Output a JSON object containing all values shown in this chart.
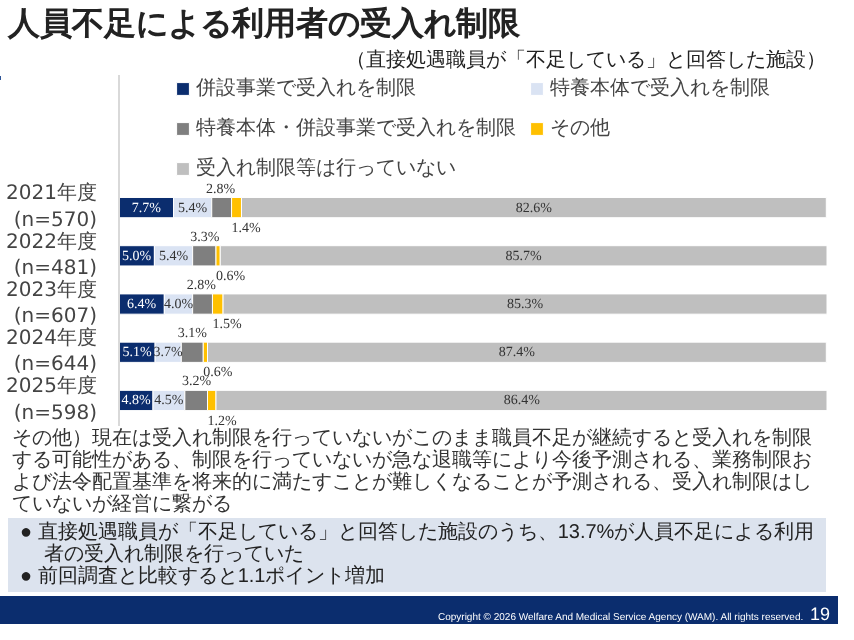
{
  "chart_data": {
    "type": "bar",
    "orientation": "horizontal",
    "stacked": true,
    "title": "人員不足による利用者の受入れ制限",
    "subtitle": "（直接処遇職員が「不足している」と回答した施設）",
    "categories": [
      "2021年度\n(n=570)",
      "2022年度\n(n=481)",
      "2023年度\n(n=607)",
      "2024年度\n(n=644)",
      "2025年度\n(n=598)"
    ],
    "xlim": [
      0,
      100
    ],
    "tick_labels": "y",
    "grid": false,
    "legend": "top",
    "data_labels": true,
    "series": [
      {
        "name": "併設事業で受入れを制限",
        "color": "#0b2d6e",
        "values": [
          7.7,
          5.0,
          6.4,
          5.1,
          4.8
        ],
        "value_labels": [
          "7.7%",
          "5.0%",
          "6.4%",
          "5.1%",
          "4.8%"
        ]
      },
      {
        "name": "特養本体で受入れを制限",
        "color": "#dae3f3",
        "values": [
          5.4,
          5.4,
          4.0,
          3.7,
          4.5
        ],
        "value_labels": [
          "5.4%",
          "5.4%",
          "4.0%",
          "3.7%",
          "4.5%"
        ]
      },
      {
        "name": "特養本体・併設事業で受入れを制限",
        "color": "#7f7f7f",
        "values": [
          2.8,
          3.3,
          2.8,
          3.1,
          3.2
        ],
        "value_labels": [
          "2.8%",
          "3.3%",
          "2.8%",
          "3.1%",
          "3.2%"
        ]
      },
      {
        "name": "その他",
        "color": "#ffc000",
        "values": [
          1.4,
          0.6,
          1.5,
          0.6,
          1.2
        ],
        "value_labels": [
          "1.4%",
          "0.6%",
          "1.5%",
          "0.6%",
          "1.2%"
        ]
      },
      {
        "name": "受入れ制限等は行っていない",
        "color": "#bfbfbf",
        "values": [
          82.6,
          85.7,
          85.3,
          87.4,
          86.4
        ],
        "value_labels": [
          "82.6%",
          "85.7%",
          "85.3%",
          "87.4%",
          "86.4%"
        ]
      }
    ],
    "annotations": [
      "その他）現在は受入れ制限を行っていないがこのまま職員不足が継続すると受入れを制限する可能性がある、制限を行っていないが急な退職等により今後予測される、業務制限および法令配置基準を将来的に満たすことが難しくなることが予測される、受入れ制限はしていないが経営に繋がる",
      "● 直接処遇職員が「不足している」と回答した施設のうち、13.7%が人員不足による利用者の受入れ制限を行っていた",
      "● 前回調査と比較すると1.1ポイント増加",
      "Copyright © 2026 Welfare And Medical Service Agency (WAM). All rights reserved.",
      "19"
    ]
  }
}
